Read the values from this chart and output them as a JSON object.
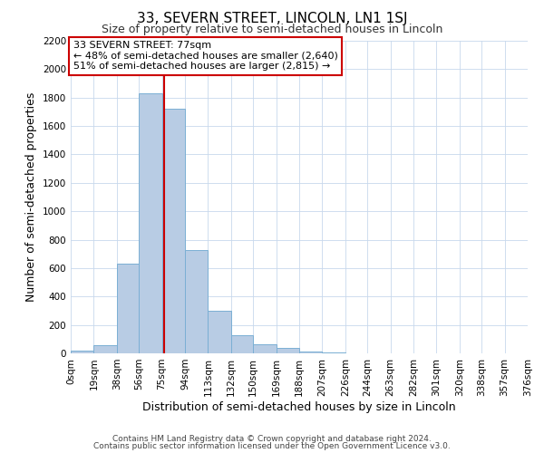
{
  "title": "33, SEVERN STREET, LINCOLN, LN1 1SJ",
  "subtitle": "Size of property relative to semi-detached houses in Lincoln",
  "xlabel": "Distribution of semi-detached houses by size in Lincoln",
  "ylabel": "Number of semi-detached properties",
  "footer_line1": "Contains HM Land Registry data © Crown copyright and database right 2024.",
  "footer_line2": "Contains public sector information licensed under the Open Government Licence v3.0.",
  "bin_edges": [
    0,
    19,
    38,
    56,
    75,
    94,
    113,
    132,
    150,
    169,
    188,
    207,
    226,
    244,
    263,
    282,
    301,
    320,
    338,
    357,
    376
  ],
  "bin_labels": [
    "0sqm",
    "19sqm",
    "38sqm",
    "56sqm",
    "75sqm",
    "94sqm",
    "113sqm",
    "132sqm",
    "150sqm",
    "169sqm",
    "188sqm",
    "207sqm",
    "226sqm",
    "244sqm",
    "263sqm",
    "282sqm",
    "301sqm",
    "320sqm",
    "338sqm",
    "357sqm",
    "376sqm"
  ],
  "counts": [
    20,
    60,
    630,
    1830,
    1720,
    730,
    300,
    130,
    65,
    40,
    15,
    5,
    0,
    0,
    0,
    0,
    0,
    0,
    0,
    0
  ],
  "bar_color": "#b8cce4",
  "bar_edge_color": "#7bafd4",
  "grid_color": "#c8d8ec",
  "property_value": 77,
  "marker_line_color": "#cc0000",
  "annotation_text_line1": "33 SEVERN STREET: 77sqm",
  "annotation_text_line2": "← 48% of semi-detached houses are smaller (2,640)",
  "annotation_text_line3": "51% of semi-detached houses are larger (2,815) →",
  "annotation_box_color": "#cc0000",
  "ylim": [
    0,
    2200
  ],
  "title_fontsize": 11,
  "subtitle_fontsize": 9,
  "axis_label_fontsize": 9,
  "tick_fontsize": 7.5,
  "annotation_fontsize": 8,
  "footer_fontsize": 6.5,
  "yticks": [
    0,
    200,
    400,
    600,
    800,
    1000,
    1200,
    1400,
    1600,
    1800,
    2000,
    2200
  ]
}
